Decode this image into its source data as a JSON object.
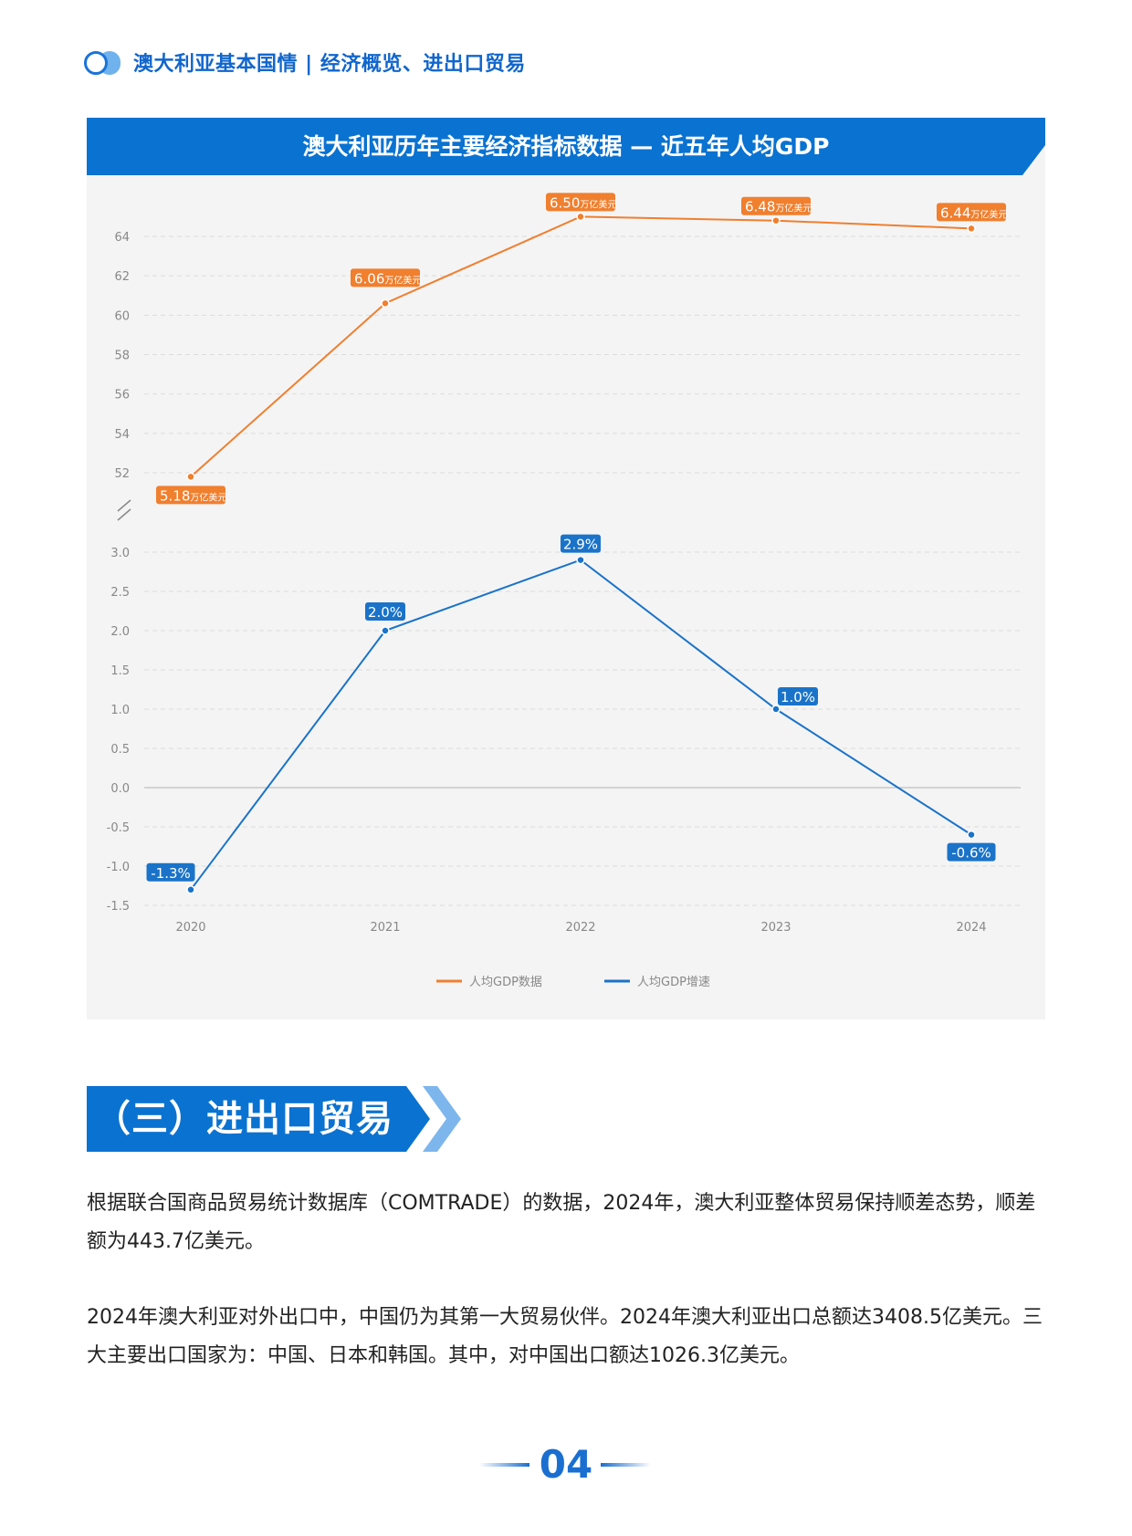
{
  "header": {
    "title": "澳大利亚基本国情 | 经济概览、进出口贸易"
  },
  "chart_title": "澳大利亚历年主要经济指标数据 — 近五年人均GDP",
  "chart_data": {
    "type": "line",
    "title": "澳大利亚历年主要经济指标数据 — 近五年人均GDP",
    "categories": [
      "2020",
      "2021",
      "2022",
      "2023",
      "2024"
    ],
    "upper_axis": {
      "ticks": [
        "52",
        "54",
        "56",
        "58",
        "60",
        "62",
        "64"
      ],
      "ylim": [
        51,
        65
      ]
    },
    "lower_axis": {
      "ticks": [
        "-1.5",
        "-1.0",
        "-0.5",
        "0.0",
        "0.5",
        "1.0",
        "1.5",
        "2.0",
        "2.5",
        "3.0"
      ],
      "ylim": [
        -1.5,
        3.0
      ]
    },
    "series": [
      {
        "name": "人均GDP数据",
        "color": "#f07f2e",
        "values": [
          51.8,
          60.6,
          65.0,
          64.8,
          64.4
        ],
        "labels": [
          "5.18",
          "6.06",
          "6.50",
          "6.48",
          "6.44"
        ],
        "label_unit": "万亿美元"
      },
      {
        "name": "人均GDP增速",
        "color": "#1a73c9",
        "values": [
          -1.3,
          2.0,
          2.9,
          1.0,
          -0.6
        ],
        "labels": [
          "-1.3%",
          "2.0%",
          "2.9%",
          "1.0%",
          "-0.6%"
        ]
      }
    ],
    "legend_position": "bottom",
    "grid": true
  },
  "section": {
    "title": "（三）进出口贸易"
  },
  "paragraphs": {
    "p1": "根据联合国商品贸易统计数据库（COMTRADE）的数据，2024年，澳大利亚整体贸易保持顺差态势，顺差额为443.7亿美元。",
    "p2": "2024年澳大利亚对外出口中，中国仍为其第一大贸易伙伴。2024年澳大利亚出口总额达3408.5亿美元。三大主要出口国家为：中国、日本和韩国。其中，对中国出口额达1026.3亿美元。"
  },
  "footer": {
    "page_number": "04"
  },
  "colors": {
    "brand_blue": "#0a72d1",
    "orange": "#f07f2e",
    "line_blue": "#1a73c9"
  }
}
